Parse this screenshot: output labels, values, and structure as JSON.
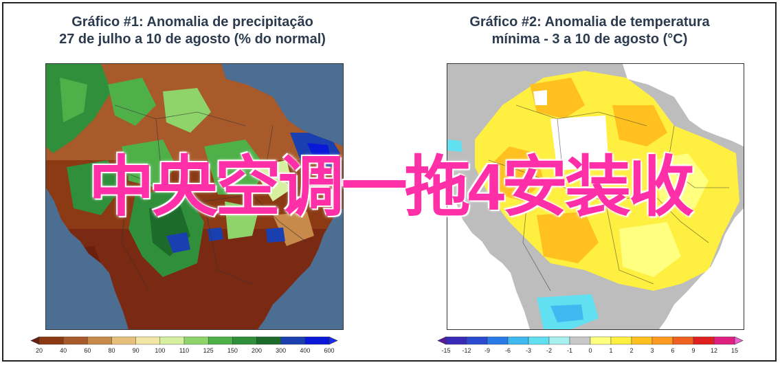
{
  "panel1": {
    "title_line1": "Gráfico #1: Anomalia de precipitação",
    "title_line2": "27 de julho a 10 de agosto (% do normal)",
    "colorbar": {
      "labels": [
        "20",
        "40",
        "60",
        "80",
        "90",
        "100",
        "110",
        "125",
        "150",
        "200",
        "300",
        "400",
        "600"
      ],
      "colors": [
        "#6b1f0f",
        "#8b3a14",
        "#a85a2a",
        "#c88a4a",
        "#e6c07a",
        "#f2e6a6",
        "#d6f0a0",
        "#8ed46a",
        "#4fb04a",
        "#2f8f3a",
        "#1d6b2b",
        "#1a3fb0",
        "#0a18d8",
        "#1a2cf0"
      ],
      "ocean_color": "#4d6e93",
      "land_color": "#7a2a12"
    }
  },
  "panel2": {
    "title_line1": "Gráfico #2: Anomalia de temperatura",
    "title_line2": "mínima - 3 a 10 de agosto (°C)",
    "colorbar": {
      "labels": [
        "-15",
        "-12",
        "-9",
        "-6",
        "-3",
        "-2",
        "-1",
        "0",
        "1",
        "2",
        "3",
        "6",
        "9",
        "12",
        "15"
      ],
      "colors": [
        "#5a1aa0",
        "#3a2ab8",
        "#2a4ad0",
        "#2a7ae8",
        "#40b8f0",
        "#60e0f0",
        "#a8f0f0",
        "#c8c8c8",
        "#ffff80",
        "#ffef40",
        "#ffc020",
        "#ff9a20",
        "#f06020",
        "#e02020",
        "#e02080",
        "#f060d0"
      ],
      "ocean_color": "#ffffff",
      "land_color": "#bdbdbd"
    }
  },
  "overlay_text": "中央空调一拖4安装收"
}
